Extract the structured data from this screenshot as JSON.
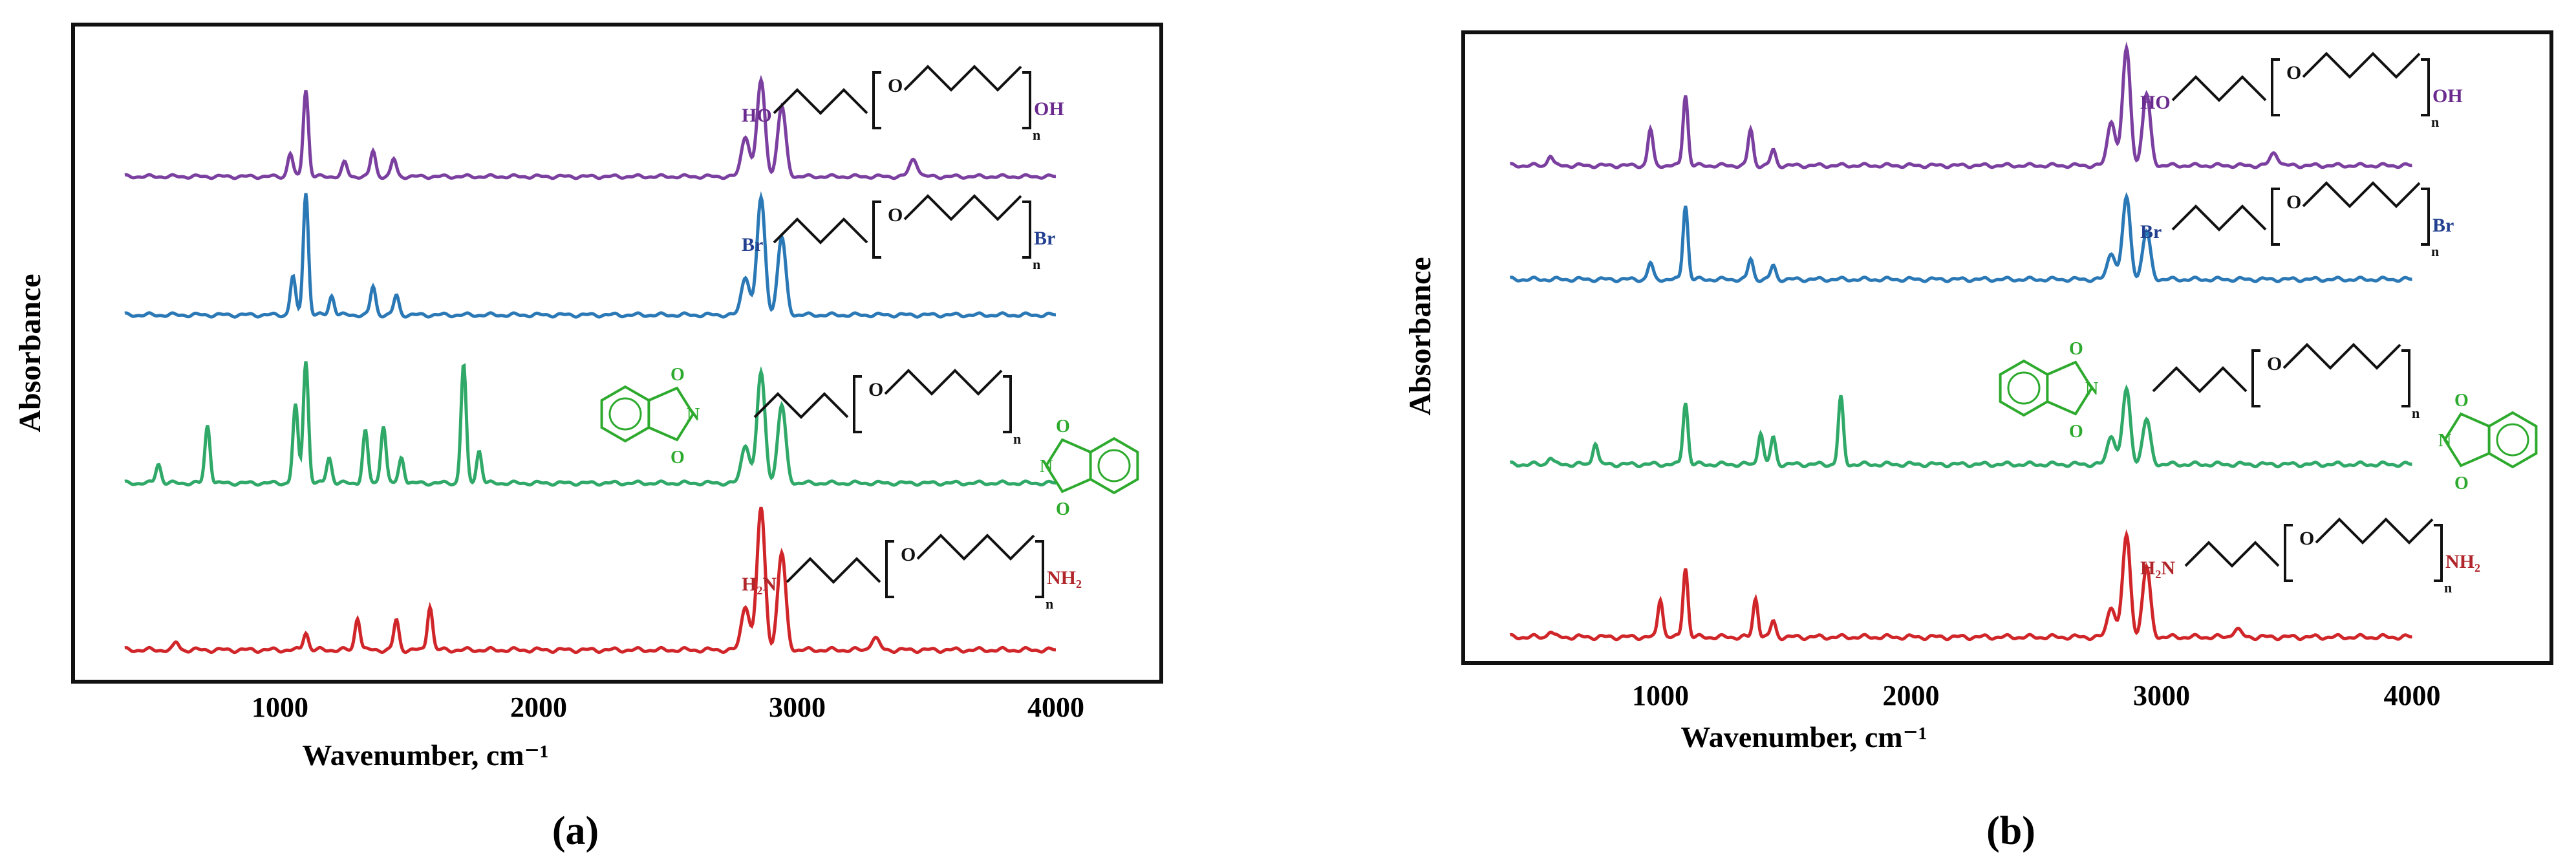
{
  "figure": {
    "panel_labels": [
      "(a)",
      "(b)"
    ]
  },
  "colors": {
    "purple": "#7B3FA0",
    "blue": "#2A78B5",
    "green": "#2FA868",
    "red": "#D0262A",
    "struct_purple": "#6A2A8E",
    "struct_blue": "#233F8F",
    "struct_green": "#2DAA2D",
    "struct_red": "#B0262A"
  },
  "chart_data": [
    {
      "type": "line",
      "panel": "(a)",
      "xlabel": "Wavenumber, cm⁻¹",
      "ylabel": "Absorbance",
      "xlim": [
        400,
        4000
      ],
      "xticks": [
        "1000",
        "2000",
        "3000",
        "4000"
      ],
      "grid": false,
      "legend": "none",
      "series": [
        {
          "color": "purple",
          "structure": {
            "left": "HO",
            "right": "OH",
            "sub": "n"
          },
          "peaks": [
            [
              1100,
              0.75
            ],
            [
              1040,
              0.2
            ],
            [
              1250,
              0.12
            ],
            [
              1360,
              0.22
            ],
            [
              1440,
              0.15
            ],
            [
              2800,
              0.35
            ],
            [
              2860,
              0.82
            ],
            [
              2940,
              0.6
            ],
            [
              3450,
              0.15
            ]
          ]
        },
        {
          "color": "blue",
          "structure": {
            "left": "Br",
            "right": "Br",
            "sub": "n"
          },
          "peaks": [
            [
              1100,
              0.95
            ],
            [
              1050,
              0.3
            ],
            [
              1200,
              0.15
            ],
            [
              1360,
              0.22
            ],
            [
              1450,
              0.15
            ],
            [
              2800,
              0.3
            ],
            [
              2860,
              0.9
            ],
            [
              2940,
              0.6
            ]
          ]
        },
        {
          "color": "green",
          "structure": {
            "left": "phthalimide-N",
            "right": "N-phthalimide",
            "sub": "n"
          },
          "peaks": [
            [
              530,
              0.15
            ],
            [
              720,
              0.45
            ],
            [
              1060,
              0.6
            ],
            [
              1100,
              0.95
            ],
            [
              1190,
              0.2
            ],
            [
              1330,
              0.4
            ],
            [
              1400,
              0.45
            ],
            [
              1470,
              0.2
            ],
            [
              1710,
              0.92
            ],
            [
              1770,
              0.25
            ],
            [
              2800,
              0.3
            ],
            [
              2860,
              0.85
            ],
            [
              2940,
              0.6
            ]
          ]
        },
        {
          "color": "red",
          "structure": {
            "left": "H₂N",
            "right": "NH₂",
            "sub": "n"
          },
          "peaks": [
            [
              600,
              0.05
            ],
            [
              1100,
              0.12
            ],
            [
              1300,
              0.22
            ],
            [
              1450,
              0.2
            ],
            [
              1580,
              0.3
            ],
            [
              2800,
              0.3
            ],
            [
              2860,
              0.95
            ],
            [
              2940,
              0.65
            ],
            [
              3300,
              0.08
            ]
          ]
        }
      ]
    },
    {
      "type": "line",
      "panel": "(b)",
      "xlabel": "Wavenumber, cm⁻¹",
      "ylabel": "Absorbance",
      "xlim": [
        400,
        4000
      ],
      "xticks": [
        "1000",
        "2000",
        "3000",
        "4000"
      ],
      "grid": false,
      "legend": "none",
      "series": [
        {
          "color": "purple",
          "structure": {
            "left": "HO",
            "right": "OH",
            "sub": "n"
          },
          "peaks": [
            [
              560,
              0.08
            ],
            [
              960,
              0.28
            ],
            [
              1100,
              0.55
            ],
            [
              1360,
              0.28
            ],
            [
              1450,
              0.12
            ],
            [
              2800,
              0.35
            ],
            [
              2860,
              0.9
            ],
            [
              2940,
              0.55
            ],
            [
              3450,
              0.1
            ]
          ]
        },
        {
          "color": "blue",
          "structure": {
            "left": "Br",
            "right": "Br",
            "sub": "n"
          },
          "peaks": [
            [
              960,
              0.12
            ],
            [
              1100,
              0.55
            ],
            [
              1360,
              0.15
            ],
            [
              1450,
              0.1
            ],
            [
              2800,
              0.2
            ],
            [
              2860,
              0.6
            ],
            [
              2940,
              0.35
            ]
          ]
        },
        {
          "color": "green",
          "structure": {
            "left": "phthalimide-N",
            "right": "N-phthalimide",
            "sub": "n"
          },
          "peaks": [
            [
              560,
              0.05
            ],
            [
              740,
              0.15
            ],
            [
              1100,
              0.42
            ],
            [
              1400,
              0.22
            ],
            [
              1450,
              0.18
            ],
            [
              1720,
              0.45
            ],
            [
              2800,
              0.2
            ],
            [
              2860,
              0.5
            ],
            [
              2940,
              0.3
            ]
          ]
        },
        {
          "color": "red",
          "structure": {
            "left": "H₂N",
            "right": "NH₂",
            "sub": "n"
          },
          "peaks": [
            [
              560,
              0.04
            ],
            [
              1000,
              0.25
            ],
            [
              1100,
              0.45
            ],
            [
              1380,
              0.25
            ],
            [
              1450,
              0.1
            ],
            [
              2800,
              0.2
            ],
            [
              2860,
              0.65
            ],
            [
              2940,
              0.45
            ],
            [
              3300,
              0.05
            ]
          ]
        }
      ]
    }
  ]
}
